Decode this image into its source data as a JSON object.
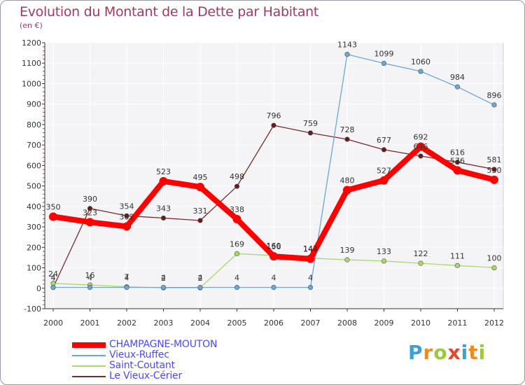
{
  "header": {
    "title": "Evolution du Montant de la Dette par Habitant",
    "subtitle": "(en €)"
  },
  "logo": {
    "letters": [
      "P",
      "r",
      "o",
      "x",
      "i",
      "t",
      "i"
    ],
    "colors": [
      "#3aa0d8",
      "#f08a1c",
      "#9bc83c",
      "#e8452a",
      "#3aa0d8",
      "#f08a1c",
      "#9bc83c"
    ]
  },
  "chart_data": {
    "type": "line",
    "title": "Evolution du Montant de la Dette par Habitant",
    "subtitle": "(en €)",
    "xlabel": "",
    "ylabel": "",
    "x": [
      "2000",
      "2001",
      "2002",
      "2003",
      "2004",
      "2005",
      "2006",
      "2007",
      "2008",
      "2009",
      "2010",
      "2011",
      "2012"
    ],
    "ylim": [
      -100,
      1200
    ],
    "yticks": [
      -100,
      0,
      100,
      200,
      300,
      400,
      500,
      600,
      700,
      800,
      900,
      1000,
      1100,
      1200
    ],
    "grid": true,
    "legend_position": "bottom-left",
    "series": [
      {
        "name": "CHAMPAGNE-MOUTON",
        "color": "#ff0000",
        "width": 8,
        "values": [
          350,
          323,
          302,
          523,
          495,
          338,
          156,
          144,
          480,
          527,
          692,
          576,
          530
        ]
      },
      {
        "name": "Vieux-Ruffec",
        "color": "#6aa6d8",
        "width": 1.3,
        "values": [
          4,
          4,
          4,
          4,
          4,
          4,
          4,
          4,
          1143,
          1099,
          1060,
          984,
          896
        ]
      },
      {
        "name": "Saint-Coutant",
        "color": "#a6d96a",
        "width": 1.3,
        "values": [
          24,
          16,
          7,
          2,
          2,
          169,
          160,
          147,
          139,
          133,
          122,
          111,
          100
        ]
      },
      {
        "name": "Le Vieux-Cérier",
        "color": "#7a2a2a",
        "width": 1.3,
        "values": [
          4,
          390,
          354,
          343,
          331,
          498,
          796,
          759,
          728,
          677,
          646,
          616,
          581
        ]
      }
    ],
    "data_labels": {
      "CHAMPAGNE-MOUTON": [
        "350",
        "323",
        "302",
        "523",
        "495",
        "338",
        "156",
        "144",
        "480",
        "527",
        "692",
        "576",
        "530"
      ],
      "Vieux-Ruffec": [
        "4",
        "4",
        "4",
        "4",
        "4",
        "4",
        "4",
        "4",
        "1143",
        "1099",
        "1060",
        "984",
        "896"
      ],
      "Saint-Coutant": [
        "24",
        "16",
        "7",
        "2",
        "2",
        "169",
        "160",
        "147",
        "139",
        "133",
        "122",
        "111",
        "100"
      ],
      "Le Vieux-Cérier": [
        "4",
        "390",
        "354",
        "343",
        "331",
        "498",
        "796",
        "759",
        "728",
        "677",
        "646",
        "616",
        "581"
      ]
    }
  }
}
